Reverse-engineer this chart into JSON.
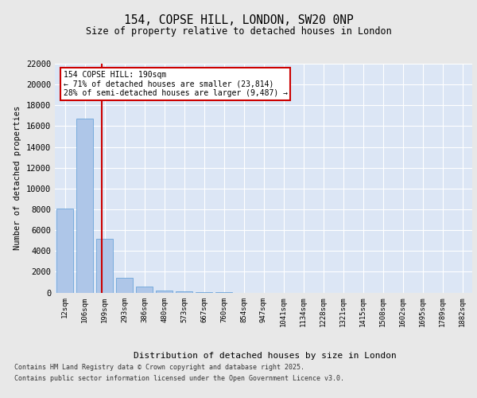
{
  "title_line1": "154, COPSE HILL, LONDON, SW20 0NP",
  "title_line2": "Size of property relative to detached houses in London",
  "xlabel": "Distribution of detached houses by size in London",
  "ylabel": "Number of detached properties",
  "categories": [
    "12sqm",
    "106sqm",
    "199sqm",
    "293sqm",
    "386sqm",
    "480sqm",
    "573sqm",
    "667sqm",
    "760sqm",
    "854sqm",
    "947sqm",
    "1041sqm",
    "1134sqm",
    "1228sqm",
    "1321sqm",
    "1415sqm",
    "1508sqm",
    "1602sqm",
    "1695sqm",
    "1789sqm",
    "1882sqm"
  ],
  "values": [
    8100,
    16700,
    5200,
    1450,
    550,
    200,
    100,
    30,
    5,
    0,
    0,
    0,
    0,
    0,
    0,
    0,
    0,
    0,
    0,
    0,
    0
  ],
  "bar_color": "#aec6e8",
  "bar_edge_color": "#5b9bd5",
  "vline_x": 1.87,
  "vline_color": "#cc0000",
  "annotation_text": "154 COPSE HILL: 190sqm\n← 71% of detached houses are smaller (23,814)\n28% of semi-detached houses are larger (9,487) →",
  "annotation_box_edgecolor": "#cc0000",
  "ylim": [
    0,
    22000
  ],
  "yticks": [
    0,
    2000,
    4000,
    6000,
    8000,
    10000,
    12000,
    14000,
    16000,
    18000,
    20000,
    22000
  ],
  "plot_bg_color": "#dce6f5",
  "grid_color": "#ffffff",
  "fig_bg_color": "#e8e8e8",
  "footer_line1": "Contains HM Land Registry data © Crown copyright and database right 2025.",
  "footer_line2": "Contains public sector information licensed under the Open Government Licence v3.0."
}
